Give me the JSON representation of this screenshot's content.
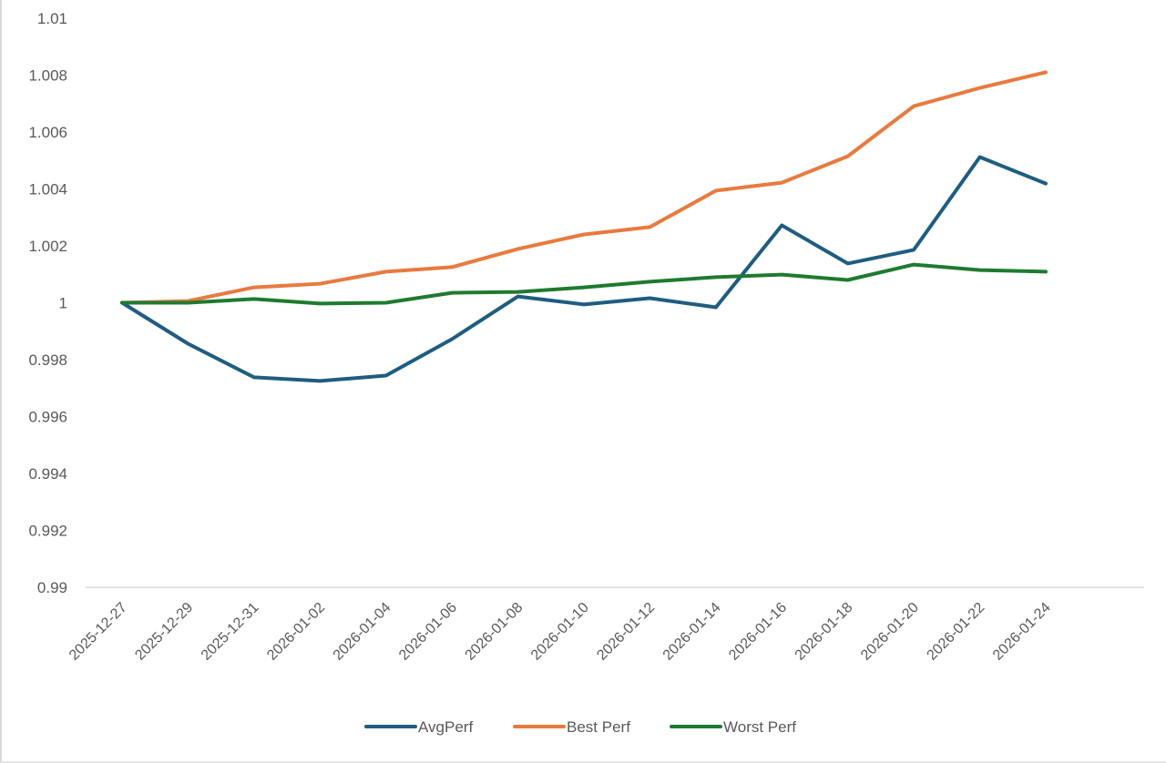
{
  "chart_data": {
    "type": "line",
    "title": "",
    "xlabel": "",
    "ylabel": "",
    "ylim": [
      0.99,
      1.01
    ],
    "y_ticks": [
      "0.99",
      "0.992",
      "0.994",
      "0.996",
      "0.998",
      "1",
      "1.002",
      "1.004",
      "1.006",
      "1.008",
      "1.01"
    ],
    "grid": false,
    "legend_position": "bottom",
    "x": [
      "2025-12-27",
      "2025-12-29",
      "2025-12-31",
      "2026-01-02",
      "2026-01-04",
      "2026-01-06",
      "2026-01-08",
      "2026-01-10",
      "2026-01-12",
      "2026-01-14",
      "2026-01-16",
      "2026-01-18",
      "2026-01-20",
      "2026-01-22",
      "2026-01-24"
    ],
    "series": [
      {
        "name": "AvgPerf",
        "color": "#1f5d80",
        "values": [
          1.0,
          0.99856,
          0.99738,
          0.99725,
          0.99744,
          0.99872,
          1.00022,
          0.99994,
          1.00016,
          0.99984,
          1.00272,
          1.00138,
          1.00186,
          1.00512,
          1.00419
        ]
      },
      {
        "name": "Best Perf",
        "color": "#e97a3f",
        "values": [
          1.0,
          1.00006,
          1.00054,
          1.00067,
          1.00109,
          1.00125,
          1.00189,
          1.0024,
          1.00266,
          1.00394,
          1.00422,
          1.00515,
          1.00691,
          1.00755,
          1.0081
        ]
      },
      {
        "name": "Worst Perf",
        "color": "#1f7a30",
        "values": [
          1.0,
          1.0,
          1.00013,
          0.99997,
          1.0,
          1.00035,
          1.00038,
          1.00054,
          1.00074,
          1.0009,
          1.00099,
          1.0008,
          1.00134,
          1.00115,
          1.00109
        ]
      }
    ]
  },
  "colors": {
    "axis_line": "#d9d9d9",
    "tick_text": "#595959",
    "background": "#ffffff"
  }
}
